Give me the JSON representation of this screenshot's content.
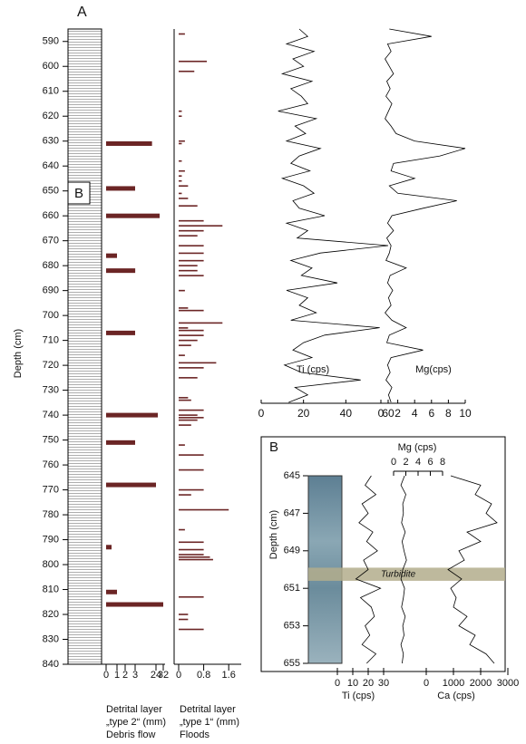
{
  "chart_data": [
    {
      "type": "bar",
      "title": "A",
      "annotations": [
        "B"
      ],
      "ylabel": "Depth (cm)",
      "ylim": [
        585,
        840
      ],
      "yticks": [
        590,
        600,
        610,
        620,
        630,
        640,
        650,
        660,
        670,
        680,
        690,
        700,
        710,
        720,
        730,
        740,
        750,
        760,
        770,
        780,
        790,
        800,
        810,
        820,
        830,
        840
      ],
      "xlabel": [
        "Detrital layer",
        "„type 2“ (mm)",
        "Debris flow"
      ],
      "xticks": [
        0,
        1,
        2,
        3,
        24,
        32
      ],
      "color": "#6b2525",
      "x": [
        631,
        649,
        660,
        676,
        682,
        707,
        740,
        751,
        768,
        793,
        811,
        816
      ],
      "values": [
        20,
        3,
        28,
        1,
        3.1,
        3,
        26,
        3,
        24,
        0.5,
        1,
        32
      ]
    },
    {
      "type": "bar",
      "ylim": [
        585,
        840
      ],
      "xlim": [
        0,
        2
      ],
      "xticks": [
        0,
        0.8,
        1.6
      ],
      "color": "#6b2525",
      "xlabel": [
        "Detrital layer",
        "„type 1“ (mm)",
        "Floods"
      ],
      "x": [
        587,
        598,
        602,
        618,
        620,
        630,
        631,
        638,
        642,
        644,
        646,
        648,
        651,
        653,
        656,
        662,
        664,
        666,
        668,
        672,
        675,
        678,
        680,
        682,
        684,
        690,
        697,
        698,
        703,
        705,
        706,
        708,
        710,
        712,
        716,
        719,
        721,
        725,
        733,
        734,
        738,
        740,
        741,
        742,
        744,
        752,
        756,
        762,
        770,
        772,
        778,
        786,
        791,
        794,
        796,
        797,
        798,
        813,
        820,
        822,
        826
      ],
      "values": [
        0.2,
        0.9,
        0.5,
        0.1,
        0.1,
        0.2,
        0.1,
        0.1,
        0.2,
        0.1,
        0.1,
        0.3,
        0.1,
        0.3,
        0.6,
        0.8,
        1.4,
        0.8,
        0.6,
        0.8,
        0.8,
        0.8,
        0.6,
        0.6,
        0.8,
        0.2,
        0.3,
        0.8,
        1.4,
        0.3,
        0.8,
        0.8,
        0.6,
        0.4,
        0.2,
        1.2,
        0.8,
        0.6,
        0.3,
        0.4,
        0.8,
        0.6,
        0.8,
        0.6,
        0.4,
        0.2,
        0.8,
        0.8,
        0.8,
        0.4,
        1.6,
        0.2,
        0.8,
        0.8,
        0.8,
        1.0,
        1.1,
        0.8,
        0.3,
        0.3,
        0.8
      ]
    },
    {
      "type": "line",
      "label": "Ti (cps)",
      "ylim": [
        585,
        735
      ],
      "xlim": [
        0,
        60
      ],
      "xticks": [
        0,
        20,
        40,
        60
      ],
      "x": [
        585,
        588,
        591,
        594,
        597,
        600,
        603,
        606,
        609,
        612,
        615,
        618,
        621,
        624,
        627,
        630,
        633,
        636,
        639,
        642,
        645,
        648,
        651,
        654,
        657,
        660,
        663,
        666,
        669,
        672,
        675,
        678,
        681,
        684,
        687,
        690,
        693,
        696,
        699,
        702,
        705,
        708,
        711,
        714,
        717,
        720,
        723,
        726,
        729,
        732,
        735
      ],
      "values": [
        18,
        22,
        12,
        25,
        15,
        20,
        10,
        24,
        14,
        19,
        22,
        8,
        26,
        16,
        21,
        12,
        28,
        18,
        14,
        23,
        10,
        20,
        25,
        15,
        18,
        30,
        12,
        22,
        17,
        60,
        28,
        14,
        24,
        19,
        36,
        12,
        22,
        18,
        26,
        14,
        56,
        30,
        20,
        15,
        24,
        11,
        19,
        47,
        16,
        22,
        13
      ]
    },
    {
      "type": "line",
      "label": "Mg(cps)",
      "ylim": [
        585,
        735
      ],
      "xlim": [
        0,
        10
      ],
      "xticks": [
        0,
        2,
        4,
        6,
        8,
        10
      ],
      "x": [
        585,
        588,
        591,
        594,
        597,
        600,
        603,
        606,
        609,
        612,
        615,
        618,
        621,
        624,
        627,
        630,
        633,
        636,
        639,
        642,
        645,
        648,
        651,
        654,
        657,
        660,
        663,
        666,
        669,
        672,
        675,
        678,
        681,
        684,
        687,
        690,
        693,
        696,
        699,
        702,
        705,
        708,
        711,
        714,
        717,
        720,
        723,
        726,
        729,
        732,
        735
      ],
      "values": [
        1,
        6,
        0.8,
        1.2,
        0.5,
        1,
        1.5,
        0.7,
        1.1,
        0.6,
        1.3,
        0.9,
        0.5,
        1.2,
        1.8,
        4,
        10,
        7,
        1.5,
        1.2,
        4,
        1,
        2,
        9,
        5,
        1.3,
        0.8,
        1.5,
        0.7,
        1.2,
        1,
        0.6,
        3,
        1.1,
        0.8,
        1.4,
        0.9,
        1.2,
        0.5,
        1.3,
        3,
        1,
        0.7,
        5,
        1.2,
        0.8,
        1.1,
        0.6,
        1.3,
        0.9,
        1.2
      ]
    },
    {
      "type": "multiline",
      "title": "B",
      "ylabel": "Depth (cm)",
      "annotation": "Turbidite",
      "turbidite": [
        649.9,
        650.6
      ],
      "ylim": [
        645,
        655
      ],
      "yticks": [
        645,
        647,
        649,
        651,
        653,
        655
      ],
      "x": [
        645,
        645.5,
        646,
        646.5,
        647,
        647.5,
        648,
        648.5,
        649,
        649.5,
        650,
        650.5,
        651,
        651.5,
        652,
        652.5,
        653,
        653.5,
        654,
        654.5,
        655
      ],
      "series": [
        {
          "name": "Ti (cps)",
          "xaxis": "bottom",
          "xlim": [
            0,
            30
          ],
          "xticks": [
            0,
            10,
            20,
            30
          ],
          "values": [
            22,
            18,
            25,
            16,
            20,
            14,
            23,
            19,
            26,
            17,
            20,
            12,
            28,
            15,
            22,
            24,
            18,
            21,
            16,
            25,
            19
          ]
        },
        {
          "name": "Mg (cps)",
          "xaxis": "top",
          "xlim": [
            0,
            8
          ],
          "xticks": [
            0,
            2,
            4,
            6,
            8
          ],
          "values": [
            1.8,
            1.2,
            2,
            1.5,
            1.6,
            1.3,
            1.9,
            1.4,
            1.7,
            2.1,
            1.5,
            1.2,
            1.8,
            1.6,
            1.3,
            1.9,
            1.5,
            1.7,
            1.2,
            1.6,
            1.4
          ]
        },
        {
          "name": "Ca (cps)",
          "xaxis": "bottom",
          "xlim": [
            0,
            3000
          ],
          "xticks": [
            0,
            1000,
            2000,
            3000
          ],
          "values": [
            900,
            2000,
            1800,
            2400,
            2200,
            2600,
            1500,
            2000,
            1200,
            1400,
            800,
            1300,
            900,
            1100,
            1000,
            1500,
            1200,
            1800,
            1600,
            2200,
            2500
          ]
        }
      ]
    }
  ]
}
